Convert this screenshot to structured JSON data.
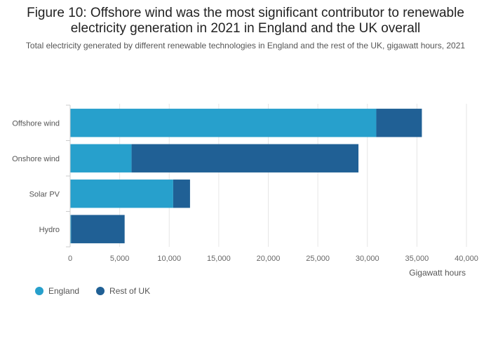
{
  "title": "Figure 10: Offshore wind was the most significant contributor to renewable electricity generation in 2021 in England and the UK overall",
  "subtitle": "Total electricity generated by different renewable technologies in England and the rest of the UK, gigawatt hours, 2021",
  "colors": {
    "england": "#27a0cc",
    "rest_of_uk": "#206095"
  },
  "chart_data": {
    "type": "bar",
    "orientation": "horizontal",
    "stacked": true,
    "title": "Figure 10: Offshore wind was the most significant contributor to renewable electricity generation in 2021 in England and the UK overall",
    "xlabel": "Gigawatt hours",
    "ylabel": "",
    "xlim": [
      0,
      40000
    ],
    "ticks": [
      "0",
      "5,000",
      "10,000",
      "15,000",
      "20,000",
      "25,000",
      "30,000",
      "35,000",
      "40,000"
    ],
    "tick_values": [
      0,
      5000,
      10000,
      15000,
      20000,
      25000,
      30000,
      35000,
      40000
    ],
    "categories": [
      "Offshore wind",
      "Onshore wind",
      "Solar PV",
      "Hydro"
    ],
    "series": [
      {
        "name": "England",
        "values": [
          30900,
          6200,
          10400,
          100
        ]
      },
      {
        "name": "Rest of UK",
        "values": [
          4600,
          22900,
          1700,
          5400
        ]
      }
    ],
    "legend_position": "bottom-left",
    "grid": true
  }
}
